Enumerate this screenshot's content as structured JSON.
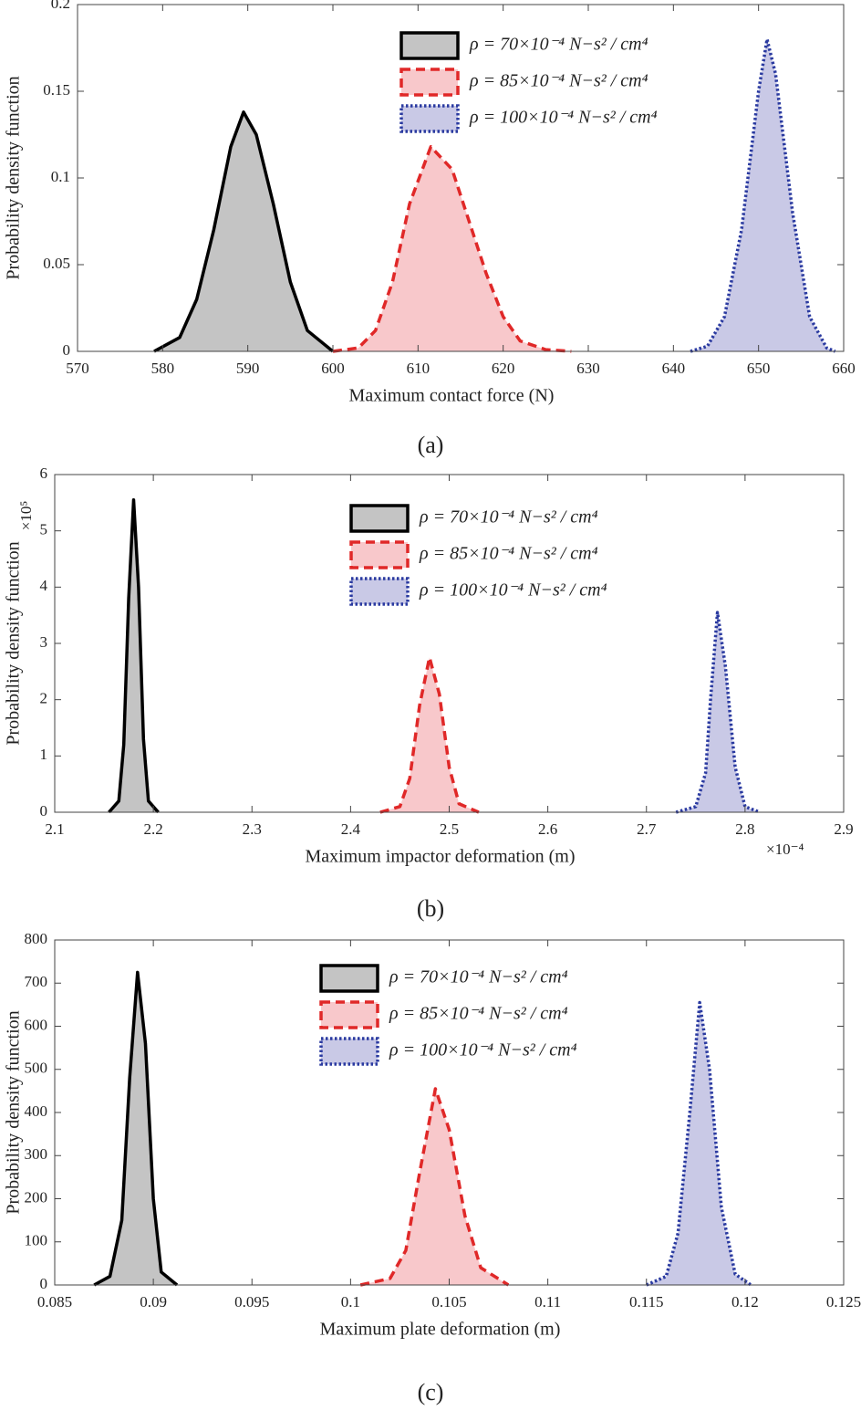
{
  "chart_data": [
    {
      "type": "area",
      "panel_label": "(a)",
      "xlabel": "Maximum contact force (N)",
      "ylabel": "Probability density function",
      "xlim": [
        570,
        660
      ],
      "xticks": [
        570,
        580,
        590,
        600,
        610,
        620,
        630,
        640,
        650,
        660
      ],
      "ylim": [
        0,
        0.2
      ],
      "yticks": [
        0,
        0.05,
        0.1,
        0.15,
        0.2
      ],
      "series": [
        {
          "name": "ρ = 70×10⁻⁴ N−s² / cm⁴",
          "color": "#000000",
          "fill": "#c4c4c4",
          "line_style": "solid",
          "x": [
            579,
            582,
            584,
            586,
            588,
            589.5,
            591,
            593,
            595,
            597,
            600
          ],
          "values": [
            0,
            0.008,
            0.03,
            0.07,
            0.118,
            0.138,
            0.125,
            0.085,
            0.04,
            0.012,
            0
          ]
        },
        {
          "name": "ρ = 85×10⁻⁴ N−s² / cm⁴",
          "color": "#e02828",
          "fill": "#f8c8cb",
          "line_style": "dashed",
          "x": [
            600,
            603,
            605,
            607,
            609,
            611.5,
            614,
            616,
            618,
            620,
            622,
            625,
            628
          ],
          "values": [
            0,
            0.002,
            0.012,
            0.04,
            0.085,
            0.118,
            0.105,
            0.075,
            0.045,
            0.02,
            0.006,
            0.001,
            0
          ]
        },
        {
          "name": "ρ = 100×10⁻⁴ N−s² / cm⁴",
          "color": "#2a3aa0",
          "fill": "#c9c9e6",
          "line_style": "dotted",
          "x": [
            642,
            644,
            646,
            648,
            650,
            651,
            652,
            654,
            656,
            658,
            659
          ],
          "values": [
            0,
            0.003,
            0.02,
            0.07,
            0.15,
            0.18,
            0.16,
            0.08,
            0.02,
            0.002,
            0
          ]
        }
      ]
    },
    {
      "type": "area",
      "panel_label": "(b)",
      "xlabel": "Maximum impactor deformation (m)",
      "ylabel": "Probability density function",
      "x_multiplier": "×10⁻⁴",
      "y_multiplier": "×10⁵",
      "xlim": [
        2.1,
        2.9
      ],
      "xticks": [
        2.1,
        2.2,
        2.3,
        2.4,
        2.5,
        2.6,
        2.7,
        2.8,
        2.9
      ],
      "ylim": [
        0,
        6
      ],
      "yticks": [
        0,
        1,
        2,
        3,
        4,
        5,
        6
      ],
      "series": [
        {
          "name": "ρ = 70×10⁻⁴ N−s² / cm⁴",
          "color": "#000000",
          "fill": "#c4c4c4",
          "line_style": "solid",
          "x": [
            2.155,
            2.165,
            2.17,
            2.175,
            2.18,
            2.185,
            2.19,
            2.195,
            2.205
          ],
          "values": [
            0,
            0.2,
            1.2,
            3.8,
            5.55,
            4,
            1.3,
            0.2,
            0
          ]
        },
        {
          "name": "ρ = 85×10⁻⁴ N−s² / cm⁴",
          "color": "#e02828",
          "fill": "#f8c8cb",
          "line_style": "dashed",
          "x": [
            2.43,
            2.45,
            2.46,
            2.47,
            2.48,
            2.49,
            2.5,
            2.51,
            2.53
          ],
          "values": [
            0,
            0.1,
            0.6,
            1.9,
            2.75,
            2.1,
            0.8,
            0.15,
            0
          ]
        },
        {
          "name": "ρ = 100×10⁻⁴ N−s² / cm⁴",
          "color": "#2a3aa0",
          "fill": "#c9c9e6",
          "line_style": "dotted",
          "x": [
            2.73,
            2.75,
            2.76,
            2.765,
            2.772,
            2.78,
            2.79,
            2.8,
            2.815
          ],
          "values": [
            0,
            0.1,
            0.7,
            2,
            3.55,
            2.6,
            0.8,
            0.1,
            0
          ]
        }
      ]
    },
    {
      "type": "area",
      "panel_label": "(c)",
      "xlabel": "Maximum plate deformation (m)",
      "ylabel": "Probability density function",
      "xlim": [
        0.085,
        0.125
      ],
      "xticks": [
        0.085,
        0.09,
        0.095,
        0.1,
        0.105,
        0.11,
        0.115,
        0.12,
        0.125
      ],
      "ylim": [
        0,
        800
      ],
      "yticks": [
        0,
        100,
        200,
        300,
        400,
        500,
        600,
        700,
        800
      ],
      "series": [
        {
          "name": "ρ = 70×10⁻⁴ N−s² / cm⁴",
          "color": "#000000",
          "fill": "#c4c4c4",
          "line_style": "solid",
          "x": [
            0.087,
            0.0878,
            0.0884,
            0.0888,
            0.0892,
            0.0896,
            0.09,
            0.0904,
            0.0912
          ],
          "values": [
            0,
            20,
            150,
            480,
            725,
            560,
            200,
            30,
            0
          ]
        },
        {
          "name": "ρ = 85×10⁻⁴ N−s² / cm⁴",
          "color": "#e02828",
          "fill": "#f8c8cb",
          "line_style": "dashed",
          "x": [
            0.1005,
            0.102,
            0.1028,
            0.1035,
            0.1043,
            0.105,
            0.1058,
            0.1066,
            0.108
          ],
          "values": [
            0,
            15,
            80,
            260,
            455,
            360,
            160,
            40,
            0
          ]
        },
        {
          "name": "ρ = 100×10⁻⁴ N−s² / cm⁴",
          "color": "#2a3aa0",
          "fill": "#c9c9e6",
          "line_style": "dotted",
          "x": [
            0.115,
            0.116,
            0.1166,
            0.1172,
            0.1177,
            0.1182,
            0.1188,
            0.1195,
            0.1203
          ],
          "values": [
            0,
            20,
            120,
            400,
            655,
            500,
            180,
            25,
            0
          ]
        }
      ]
    }
  ]
}
